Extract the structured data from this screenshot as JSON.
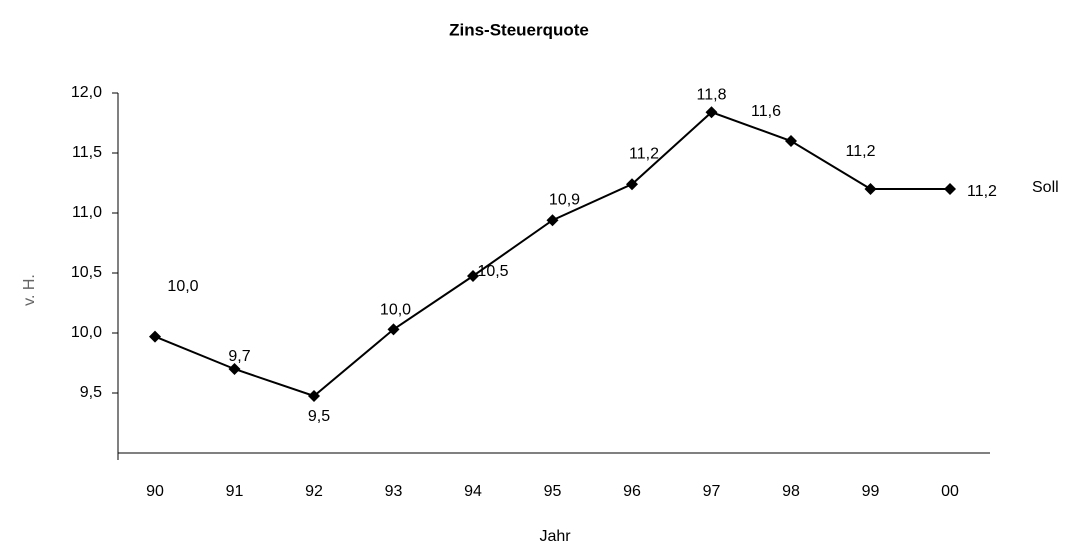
{
  "chart_data": {
    "type": "line",
    "title": "Zins-Steuerquote",
    "x_label": "Jahr",
    "y_label": "v. H.",
    "categories": [
      "90",
      "91",
      "92",
      "93",
      "94",
      "95",
      "96",
      "97",
      "98",
      "99",
      "00"
    ],
    "series": [
      {
        "color": "#000000",
        "values": [
          9.97,
          9.7,
          9.475,
          10.03,
          10.475,
          10.94,
          11.24,
          11.84,
          11.6,
          11.2,
          11.2
        ],
        "value_labels": [
          "10,0",
          "9,7",
          "9,5",
          "10,0",
          "10,5",
          "10,9",
          "11,2",
          "11,8",
          "11,6",
          "11,2",
          "11,2"
        ]
      }
    ],
    "annotations": [
      "Soll"
    ],
    "ylim": [
      9.0,
      12.0
    ],
    "yticks": [
      {
        "value": 9.5,
        "label": "9,5"
      },
      {
        "value": 10.0,
        "label": "10,0"
      },
      {
        "value": 10.5,
        "label": "10,5"
      },
      {
        "value": 11.0,
        "label": "11,0"
      },
      {
        "value": 11.5,
        "label": "11,5"
      },
      {
        "value": 12.0,
        "label": "12,0"
      }
    ],
    "grid": false
  }
}
